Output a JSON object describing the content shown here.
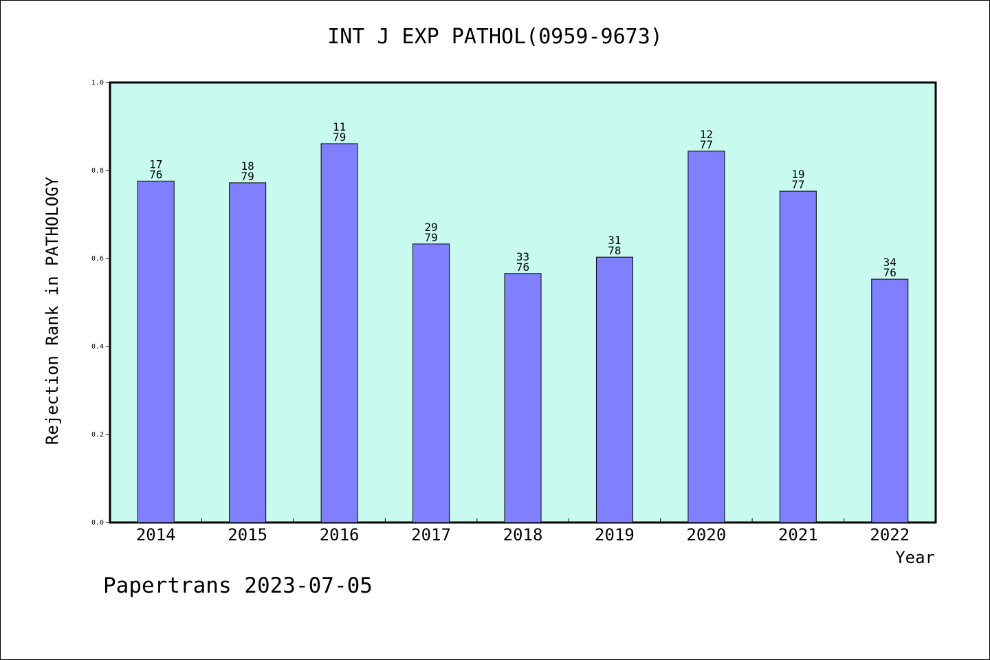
{
  "chart_data": {
    "type": "bar",
    "title": "INT J EXP PATHOL(0959-9673)",
    "xlabel": "Year",
    "ylabel": "Rejection Rank in PATHOLOGY",
    "categories": [
      "2014",
      "2015",
      "2016",
      "2017",
      "2018",
      "2019",
      "2020",
      "2021",
      "2022"
    ],
    "values": [
      0.776,
      0.772,
      0.861,
      0.633,
      0.566,
      0.603,
      0.844,
      0.753,
      0.553
    ],
    "bar_labels": [
      [
        "17",
        "76"
      ],
      [
        "18",
        "79"
      ],
      [
        "11",
        "79"
      ],
      [
        "29",
        "79"
      ],
      [
        "33",
        "76"
      ],
      [
        "31",
        "78"
      ],
      [
        "12",
        "77"
      ],
      [
        "19",
        "77"
      ],
      [
        "34",
        "76"
      ]
    ],
    "ylim": [
      0,
      1.0
    ],
    "yticks": [
      "0.0",
      "0.2",
      "0.4",
      "0.6",
      "0.8",
      "1.0"
    ],
    "grid": false,
    "colors": {
      "plot_background": "#c8faf0",
      "bar_fill": "#8080ff",
      "bar_stroke": "#000000"
    }
  },
  "footer": {
    "text": "Papertrans 2023-07-05"
  }
}
